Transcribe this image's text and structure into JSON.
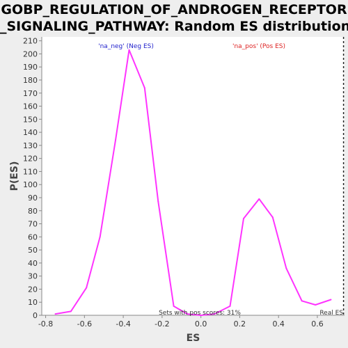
{
  "chart_data": {
    "type": "line",
    "title_line1": "GOBP_REGULATION_OF_ANDROGEN_RECEPTOR",
    "title_line2": "_SIGNALING_PATHWAY: Random ES distribution",
    "xlabel": "ES",
    "ylabel": "P(ES)",
    "xlim": [
      -0.82,
      0.74
    ],
    "ylim": [
      0,
      213
    ],
    "xticks": [
      -0.8,
      -0.6,
      -0.4,
      -0.2,
      0.0,
      0.2,
      0.4,
      0.6
    ],
    "xtick_labels": [
      "-0.8",
      "-0.6",
      "-0.4",
      "-0.2",
      "0.0",
      "0.2",
      "0.4",
      "0.6"
    ],
    "yticks": [
      0,
      10,
      20,
      30,
      40,
      50,
      60,
      70,
      80,
      90,
      100,
      110,
      120,
      130,
      140,
      150,
      160,
      170,
      180,
      190,
      200,
      210
    ],
    "grid": false,
    "series": [
      {
        "name": "",
        "color": "#ff33ff",
        "x": [
          -0.75,
          -0.67,
          -0.59,
          -0.52,
          -0.44,
          -0.37,
          -0.29,
          -0.22,
          -0.14,
          -0.07,
          0.0,
          0.07,
          0.15,
          0.22,
          0.3,
          0.37,
          0.44,
          0.52,
          0.59,
          0.67
        ],
        "y": [
          1,
          3,
          21,
          60,
          134,
          203,
          174,
          87,
          7,
          1,
          0,
          1,
          7,
          74,
          89,
          75,
          36,
          11,
          8,
          12
        ]
      }
    ],
    "annotations": {
      "neg_label": "'na_neg' (Neg ES)",
      "pos_label": "'na_pos' (Pos ES)",
      "neg_color": "#2222cc",
      "pos_color": "#dd2222",
      "sets_note": "Sets with pos scores: 31%",
      "real_es_label": "Real ES",
      "real_es_x": 0.735
    }
  }
}
